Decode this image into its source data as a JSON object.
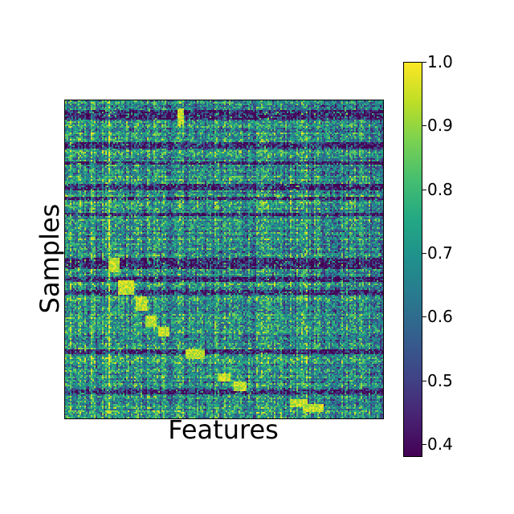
{
  "chart_data": {
    "type": "heatmap",
    "title": "",
    "xlabel": "Features",
    "ylabel": "Samples",
    "colormap": "viridis",
    "value_range": [
      0.38,
      1.0
    ],
    "colorbar_ticks": [
      "1.0",
      "0.9",
      "0.8",
      "0.7",
      "0.6",
      "0.5",
      "0.4"
    ],
    "grid": false,
    "colorbar_position": "right"
  }
}
